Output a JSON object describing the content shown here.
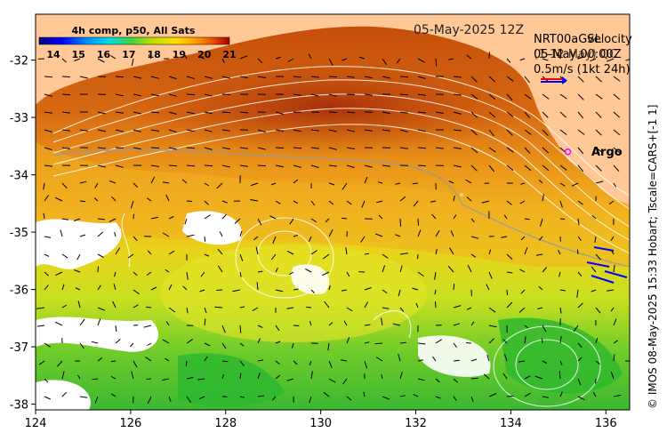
{
  "title": "05-May-2025 12Z",
  "colorbar": {
    "label": "4h comp, p50, All Sats",
    "ticks": [
      "14",
      "15",
      "16",
      "17",
      "18",
      "19",
      "20",
      "21"
    ],
    "colors": [
      "#000080",
      "#0000ff",
      "#0090ff",
      "#00e0e0",
      "#40d040",
      "#c0e000",
      "#ffe000",
      "#ff9000",
      "#e04000",
      "#a00000"
    ]
  },
  "legend": {
    "line1a": "NRT00aGSL",
    "line1b": "velocity",
    "line2a": "05-May,00:00Z",
    "line2b": "(1-12 May) QC",
    "line3": "0.5m/s (1kt 24h)",
    "arrow_colors": [
      "#0000ff",
      "#ff0000"
    ]
  },
  "argo": {
    "label": "Argo",
    "lon": 135.2,
    "lat": -33.6,
    "color": "#ff00ff"
  },
  "side_text": "© IMOS 08-May-2025 15:33 Hobart; Tscale=CARS+[-1 1]",
  "axes": {
    "x_ticks": [
      "124",
      "126",
      "128",
      "130",
      "132",
      "134",
      "136"
    ],
    "x_values": [
      124,
      126,
      128,
      130,
      132,
      134,
      136
    ],
    "y_ticks": [
      "-32",
      "-33",
      "-34",
      "-35",
      "-36",
      "-37",
      "-38"
    ],
    "y_values": [
      -32,
      -33,
      -34,
      -35,
      -36,
      -37,
      -38
    ],
    "xlim": [
      124,
      136.5
    ],
    "ylim": [
      -38.1,
      -31.2
    ]
  },
  "land_color": "#ffc896"
}
